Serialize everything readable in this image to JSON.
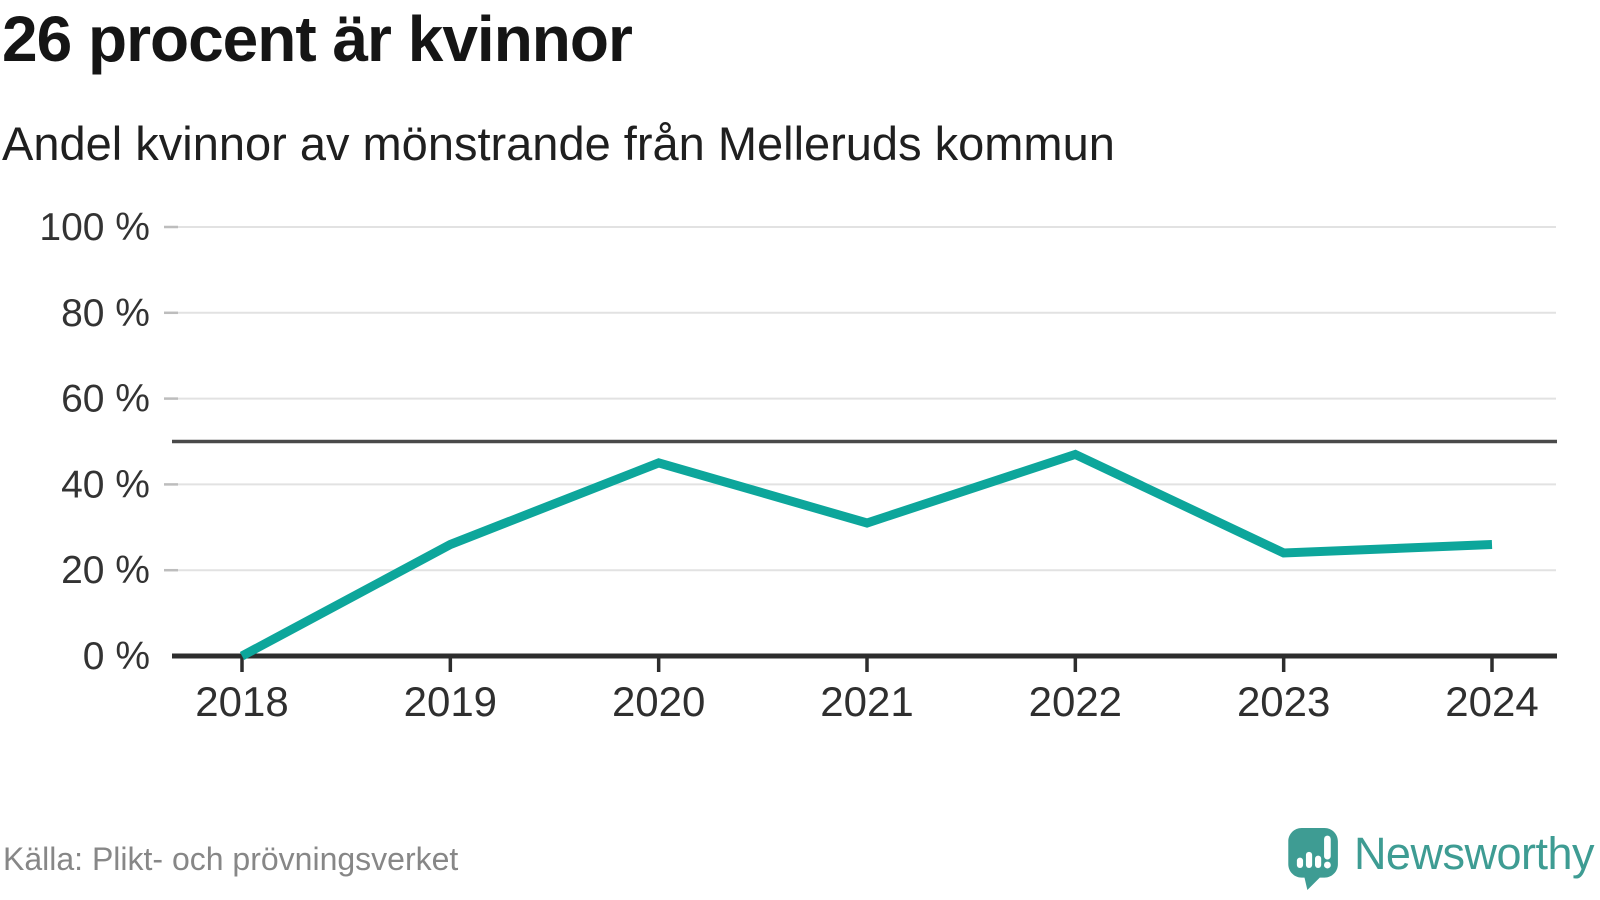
{
  "chart_data": {
    "type": "line",
    "title": "26 procent är kvinnor",
    "subtitle": "Andel kvinnor av mönstrande från Melleruds kommun",
    "x": [
      2018,
      2019,
      2020,
      2021,
      2022,
      2023,
      2024
    ],
    "values": [
      0,
      26,
      45,
      31,
      47,
      24,
      26
    ],
    "xlabel": "",
    "ylabel": "",
    "ylim": [
      0,
      100
    ],
    "yticks": [
      0,
      20,
      40,
      60,
      80,
      100
    ],
    "ytick_suffix": " %",
    "reference_line": 50,
    "grid": true,
    "legend": "none",
    "colors": {
      "line": "#0da69b",
      "reference_line": "#4a4a4a",
      "axis": "#2d2d2d",
      "gridline": "#e2e2e2",
      "minor_tick": "#bdbdbd"
    }
  },
  "footer": {
    "source": "Källa: Plikt- och prövningsverket",
    "brand": "Newsworthy",
    "brand_color": "#3e9c93"
  }
}
